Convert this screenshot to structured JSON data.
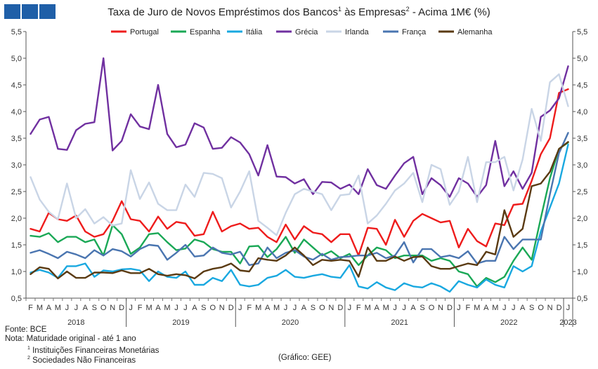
{
  "title": "Taxa de Juro de Novos Empréstimos  dos Bancos",
  "title_sup1": "1",
  "title_mid": " às Empresas",
  "title_sup2": "2",
  "title_end": " - Acima 1M€ (%)",
  "footer": {
    "source": "Fonte: BCE",
    "note": "Nota: Maturidade original - até 1 ano",
    "note1_sup": "1",
    "note1": "Instituições Financeiras Monetárias",
    "note2_sup": "2",
    "note2": "Sociedades Não Financeiras",
    "credit": "(Gráfico: GEE)"
  },
  "chart_data": {
    "type": "line",
    "title": "Taxa de Juro de Novos Empréstimos dos Bancos¹ às Empresas² - Acima 1M€ (%)",
    "ylim": [
      0.5,
      5.5
    ],
    "yticks": [
      "0,5",
      "1,0",
      "1,5",
      "2,0",
      "2,5",
      "3,0",
      "3,5",
      "4,0",
      "4,5",
      "5,0",
      "5,5"
    ],
    "month_labels": [
      "F",
      "M",
      "A",
      "M",
      "J",
      "J",
      "A",
      "S",
      "O",
      "N",
      "D",
      "J",
      "F",
      "M",
      "A",
      "M",
      "J",
      "J",
      "A",
      "S",
      "O",
      "N",
      "D",
      "J",
      "F",
      "M",
      "A",
      "M",
      "J",
      "J",
      "A",
      "S",
      "O",
      "N",
      "D",
      "J",
      "F",
      "M",
      "A",
      "M",
      "J",
      "J",
      "A",
      "S",
      "O",
      "N",
      "D",
      "J",
      "F",
      "M",
      "A",
      "M",
      "J",
      "J",
      "A",
      "S",
      "O",
      "N",
      "D",
      "J"
    ],
    "year_labels": [
      "2018",
      "2019",
      "2020",
      "2021",
      "2022",
      "2023"
    ],
    "grid": false,
    "legend": "top",
    "series": [
      {
        "name": "Portugal",
        "color": "#ee1c1c",
        "values": [
          1.8,
          1.75,
          2.1,
          1.98,
          1.95,
          2.05,
          1.75,
          1.65,
          1.7,
          1.95,
          2.32,
          1.98,
          1.95,
          1.75,
          2.03,
          1.8,
          1.93,
          1.9,
          1.67,
          1.7,
          2.12,
          1.75,
          1.85,
          1.9,
          1.8,
          1.82,
          1.65,
          1.55,
          1.88,
          1.6,
          1.85,
          1.73,
          1.7,
          1.55,
          1.7,
          1.7,
          1.3,
          1.82,
          1.8,
          1.5,
          1.97,
          1.65,
          1.95,
          2.08,
          2.0,
          1.92,
          1.95,
          1.45,
          1.8,
          1.57,
          1.47,
          1.9,
          1.87,
          2.25,
          2.27,
          2.7,
          3.2,
          3.5,
          4.35,
          4.42
        ]
      },
      {
        "name": "Espanha",
        "color": "#1aa856",
        "values": [
          1.67,
          1.65,
          1.72,
          1.55,
          1.65,
          1.65,
          1.55,
          1.6,
          1.3,
          1.87,
          1.7,
          1.33,
          1.45,
          1.7,
          1.72,
          1.55,
          1.4,
          1.43,
          1.6,
          1.55,
          1.42,
          1.37,
          1.37,
          1.15,
          1.47,
          1.48,
          1.27,
          1.42,
          1.65,
          1.35,
          1.6,
          1.45,
          1.3,
          1.38,
          1.25,
          1.33,
          1.12,
          1.3,
          1.45,
          1.4,
          1.25,
          1.3,
          1.3,
          1.3,
          1.2,
          1.25,
          1.2,
          1.0,
          0.95,
          0.72,
          0.88,
          0.8,
          0.9,
          1.2,
          1.45,
          1.22,
          2.0,
          2.75,
          3.3,
          3.42
        ]
      },
      {
        "name": "Itália",
        "color": "#19a8e0",
        "values": [
          0.98,
          1.03,
          0.98,
          0.88,
          1.1,
          1.1,
          1.15,
          0.9,
          1.02,
          1.0,
          1.04,
          1.05,
          1.02,
          0.82,
          1.0,
          0.9,
          0.88,
          1.0,
          0.75,
          0.75,
          0.88,
          0.82,
          1.03,
          0.75,
          0.72,
          0.75,
          0.88,
          0.92,
          1.03,
          0.9,
          0.88,
          0.92,
          0.95,
          0.9,
          0.88,
          1.12,
          0.72,
          0.68,
          0.8,
          0.7,
          0.65,
          0.78,
          0.72,
          0.7,
          0.78,
          0.72,
          0.62,
          0.82,
          0.75,
          0.7,
          0.85,
          0.75,
          0.7,
          1.1,
          1.0,
          1.1,
          1.75,
          2.2,
          2.65,
          3.38
        ]
      },
      {
        "name": "Grécia",
        "color": "#7030a0",
        "values": [
          3.58,
          3.85,
          3.9,
          3.3,
          3.28,
          3.65,
          3.77,
          3.8,
          5.0,
          3.27,
          3.45,
          3.95,
          3.72,
          3.67,
          4.5,
          3.58,
          3.33,
          3.38,
          3.78,
          3.7,
          3.3,
          3.32,
          3.52,
          3.42,
          3.2,
          2.8,
          3.37,
          2.78,
          2.77,
          2.65,
          2.73,
          2.45,
          2.68,
          2.67,
          2.55,
          2.63,
          2.45,
          2.92,
          2.62,
          2.55,
          2.8,
          3.03,
          3.15,
          2.45,
          2.75,
          2.62,
          2.4,
          2.75,
          2.65,
          2.4,
          2.62,
          3.45,
          2.6,
          2.88,
          2.55,
          2.85,
          3.9,
          4.02,
          4.25,
          4.85
        ]
      },
      {
        "name": "Irlanda",
        "color": "#c9d5e6",
        "values": [
          2.77,
          2.35,
          2.12,
          1.98,
          2.65,
          2.0,
          2.17,
          1.9,
          2.02,
          1.86,
          1.9,
          2.9,
          2.36,
          2.67,
          2.27,
          2.15,
          2.15,
          2.63,
          2.4,
          2.85,
          2.83,
          2.75,
          2.2,
          2.5,
          2.88,
          1.95,
          1.82,
          1.68,
          2.1,
          2.45,
          2.55,
          2.5,
          2.45,
          2.15,
          2.43,
          2.45,
          2.8,
          1.9,
          2.05,
          2.27,
          2.52,
          2.65,
          2.85,
          2.3,
          3.0,
          2.92,
          2.25,
          2.5,
          3.15,
          2.3,
          3.05,
          3.05,
          3.15,
          2.52,
          3.1,
          4.05,
          3.45,
          4.55,
          4.7,
          4.1
        ]
      },
      {
        "name": "França",
        "color": "#4a75b0",
        "values": [
          1.35,
          1.4,
          1.33,
          1.25,
          1.37,
          1.32,
          1.25,
          1.4,
          1.3,
          1.42,
          1.38,
          1.28,
          1.42,
          1.5,
          1.48,
          1.22,
          1.35,
          1.5,
          1.28,
          1.3,
          1.45,
          1.35,
          1.32,
          1.37,
          1.12,
          1.15,
          1.45,
          1.25,
          1.35,
          1.4,
          1.28,
          1.22,
          1.33,
          1.22,
          1.27,
          1.28,
          1.3,
          1.3,
          1.35,
          1.25,
          1.3,
          1.55,
          1.17,
          1.42,
          1.42,
          1.27,
          1.3,
          1.25,
          1.38,
          1.15,
          1.2,
          1.2,
          1.65,
          1.42,
          1.6,
          1.6,
          1.6,
          2.45,
          3.22,
          3.6
        ]
      },
      {
        "name": "Alemanha",
        "color": "#5a3a12",
        "values": [
          0.95,
          1.08,
          1.05,
          0.87,
          1.0,
          0.88,
          0.88,
          0.98,
          0.98,
          0.97,
          1.02,
          0.97,
          0.97,
          1.05,
          0.95,
          0.92,
          0.95,
          0.93,
          0.87,
          1.0,
          1.05,
          1.08,
          1.15,
          1.02,
          1.0,
          1.25,
          1.22,
          1.2,
          1.3,
          1.45,
          1.3,
          1.12,
          1.22,
          1.2,
          1.22,
          1.2,
          0.9,
          1.45,
          1.2,
          1.2,
          1.28,
          1.2,
          1.27,
          1.28,
          1.1,
          1.05,
          1.05,
          1.1,
          1.15,
          1.12,
          1.37,
          1.32,
          2.15,
          1.65,
          1.8,
          2.6,
          2.65,
          2.87,
          3.3,
          3.43
        ]
      }
    ]
  }
}
